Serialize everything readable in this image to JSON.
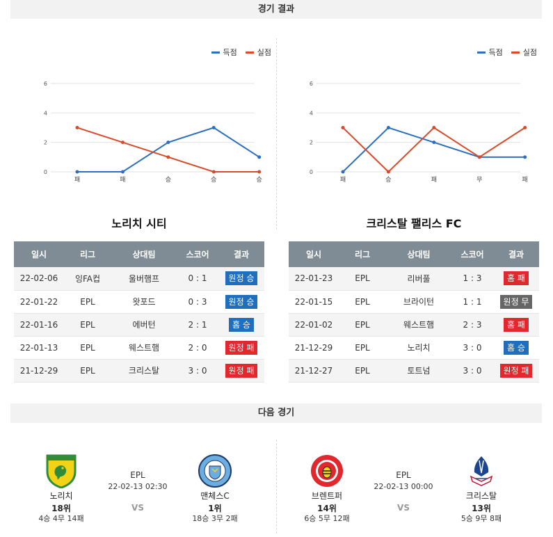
{
  "sections": {
    "results_title": "경기 결과",
    "next_title": "다음 경기"
  },
  "legend": {
    "scored": "득점",
    "conceded": "실점",
    "scored_color": "#2c6fbf",
    "conceded_color": "#d94a2b"
  },
  "teams": [
    {
      "name": "노리치 시티",
      "chart_data": {
        "type": "line",
        "categories": [
          "패",
          "패",
          "승",
          "승",
          "승"
        ],
        "series": [
          {
            "name": "득점",
            "values": [
              0,
              0,
              2,
              3,
              1
            ]
          },
          {
            "name": "실점",
            "values": [
              3,
              2,
              1,
              0,
              0
            ]
          }
        ],
        "ylim": [
          0,
          6
        ],
        "yticks": [
          "0",
          "2",
          "4",
          "6"
        ],
        "grid": true,
        "legend": "top-right"
      },
      "table": {
        "headers": [
          "일시",
          "리그",
          "상대팀",
          "스코어",
          "결과"
        ],
        "rows": [
          {
            "date": "22-02-06",
            "league": "잉FA컵",
            "opponent": "울버햄프",
            "score": "0 : 1",
            "result": "원정 승",
            "color": "#1f6fbe"
          },
          {
            "date": "22-01-22",
            "league": "EPL",
            "opponent": "왓포드",
            "score": "0 : 3",
            "result": "원정 승",
            "color": "#1f6fbe"
          },
          {
            "date": "22-01-16",
            "league": "EPL",
            "opponent": "에버턴",
            "score": "2 : 1",
            "result": "홈 승",
            "color": "#1f6fbe"
          },
          {
            "date": "22-01-13",
            "league": "EPL",
            "opponent": "웨스트햄",
            "score": "2 : 0",
            "result": "원정 패",
            "color": "#e0282e"
          },
          {
            "date": "21-12-29",
            "league": "EPL",
            "opponent": "크리스탈",
            "score": "3 : 0",
            "result": "원정 패",
            "color": "#e0282e"
          }
        ]
      }
    },
    {
      "name": "크리스탈 팰리스 FC",
      "chart_data": {
        "type": "line",
        "categories": [
          "패",
          "승",
          "패",
          "무",
          "패"
        ],
        "series": [
          {
            "name": "득점",
            "values": [
              0,
              3,
              2,
              1,
              1
            ]
          },
          {
            "name": "실점",
            "values": [
              3,
              0,
              3,
              1,
              3
            ]
          }
        ],
        "ylim": [
          0,
          6
        ],
        "yticks": [
          "0",
          "2",
          "4",
          "6"
        ],
        "grid": true,
        "legend": "top-right"
      },
      "table": {
        "headers": [
          "일시",
          "리그",
          "상대팀",
          "스코어",
          "결과"
        ],
        "rows": [
          {
            "date": "22-01-23",
            "league": "EPL",
            "opponent": "리버풀",
            "score": "1 : 3",
            "result": "홈 패",
            "color": "#e0282e"
          },
          {
            "date": "22-01-15",
            "league": "EPL",
            "opponent": "브라이턴",
            "score": "1 : 1",
            "result": "원정 무",
            "color": "#666666"
          },
          {
            "date": "22-01-02",
            "league": "EPL",
            "opponent": "웨스트햄",
            "score": "2 : 3",
            "result": "홈 패",
            "color": "#e0282e"
          },
          {
            "date": "21-12-29",
            "league": "EPL",
            "opponent": "노리치",
            "score": "3 : 0",
            "result": "홈 승",
            "color": "#1f6fbe"
          },
          {
            "date": "21-12-27",
            "league": "EPL",
            "opponent": "토트넘",
            "score": "3 : 0",
            "result": "원정 패",
            "color": "#e0282e"
          }
        ]
      }
    }
  ],
  "next_matches": [
    {
      "league": "EPL",
      "datetime": "22-02-13 02:30",
      "vs": "VS",
      "home": {
        "name": "노리치",
        "rank": "18위",
        "record": "4승 4무 14패"
      },
      "away": {
        "name": "맨체스C",
        "rank": "1위",
        "record": "18승 3무 2패"
      }
    },
    {
      "league": "EPL",
      "datetime": "22-02-13 00:00",
      "vs": "VS",
      "home": {
        "name": "브렌트퍼",
        "rank": "14위",
        "record": "6승 5무 12패"
      },
      "away": {
        "name": "크리스탈",
        "rank": "13위",
        "record": "5승 9무 8패"
      }
    }
  ]
}
